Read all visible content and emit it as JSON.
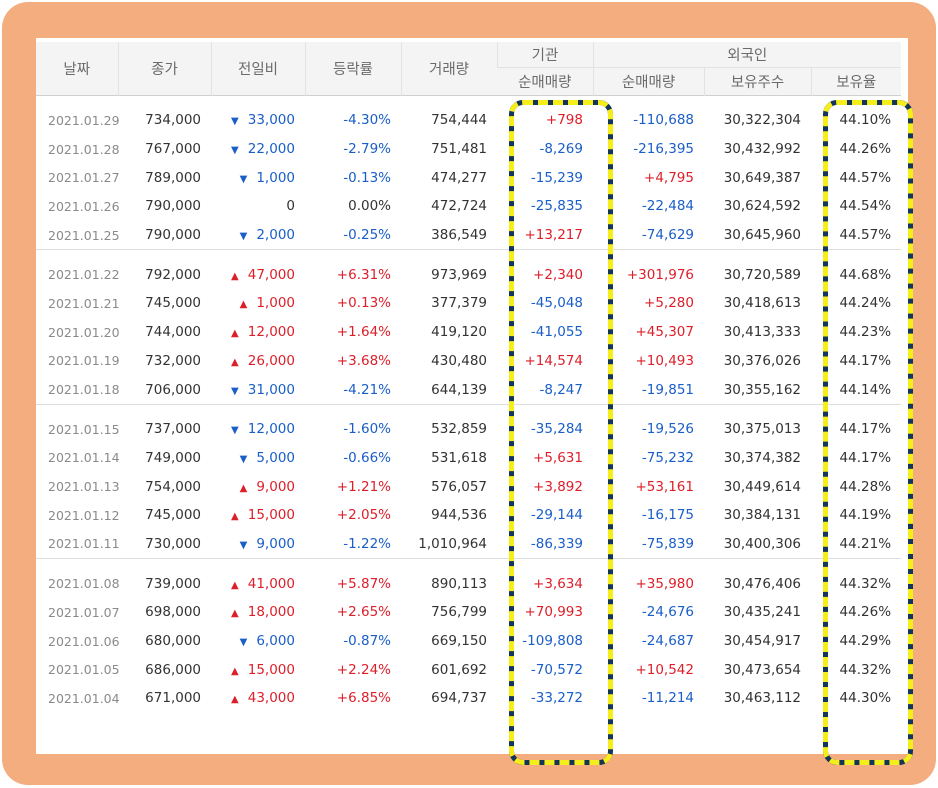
{
  "headers": {
    "date": "날짜",
    "close": "종가",
    "diff": "전일비",
    "rate": "등락률",
    "volume": "거래량",
    "institution": "기관",
    "foreign": "외국인",
    "inst_net": "순매매량",
    "foreign_net": "순매매량",
    "foreign_shares": "보유주수",
    "foreign_ratio": "보유율"
  },
  "colors": {
    "frame": "#f3ad7f",
    "up": "#dd1f2a",
    "down": "#1a5ec8",
    "highlight_dash": "#f5ee1a",
    "highlight_base": "#14355a"
  },
  "groups": [
    {
      "rows": [
        {
          "date": "2021.01.29",
          "close": "734,000",
          "dir": "down",
          "diff": "33,000",
          "rate": "-4.30%",
          "volume": "754,444",
          "inst": "+798",
          "fnet": "-110,688",
          "fshares": "30,322,304",
          "fratio": "44.10%"
        },
        {
          "date": "2021.01.28",
          "close": "767,000",
          "dir": "down",
          "diff": "22,000",
          "rate": "-2.79%",
          "volume": "751,481",
          "inst": "-8,269",
          "fnet": "-216,395",
          "fshares": "30,432,992",
          "fratio": "44.26%"
        },
        {
          "date": "2021.01.27",
          "close": "789,000",
          "dir": "down",
          "diff": "1,000",
          "rate": "-0.13%",
          "volume": "474,277",
          "inst": "-15,239",
          "fnet": "+4,795",
          "fshares": "30,649,387",
          "fratio": "44.57%"
        },
        {
          "date": "2021.01.26",
          "close": "790,000",
          "dir": "none",
          "diff": "0",
          "rate": "0.00%",
          "volume": "472,724",
          "inst": "-25,835",
          "fnet": "-22,484",
          "fshares": "30,624,592",
          "fratio": "44.54%"
        },
        {
          "date": "2021.01.25",
          "close": "790,000",
          "dir": "down",
          "diff": "2,000",
          "rate": "-0.25%",
          "volume": "386,549",
          "inst": "+13,217",
          "fnet": "-74,629",
          "fshares": "30,645,960",
          "fratio": "44.57%"
        }
      ]
    },
    {
      "rows": [
        {
          "date": "2021.01.22",
          "close": "792,000",
          "dir": "up",
          "diff": "47,000",
          "rate": "+6.31%",
          "volume": "973,969",
          "inst": "+2,340",
          "fnet": "+301,976",
          "fshares": "30,720,589",
          "fratio": "44.68%"
        },
        {
          "date": "2021.01.21",
          "close": "745,000",
          "dir": "up",
          "diff": "1,000",
          "rate": "+0.13%",
          "volume": "377,379",
          "inst": "-45,048",
          "fnet": "+5,280",
          "fshares": "30,418,613",
          "fratio": "44.24%"
        },
        {
          "date": "2021.01.20",
          "close": "744,000",
          "dir": "up",
          "diff": "12,000",
          "rate": "+1.64%",
          "volume": "419,120",
          "inst": "-41,055",
          "fnet": "+45,307",
          "fshares": "30,413,333",
          "fratio": "44.23%"
        },
        {
          "date": "2021.01.19",
          "close": "732,000",
          "dir": "up",
          "diff": "26,000",
          "rate": "+3.68%",
          "volume": "430,480",
          "inst": "+14,574",
          "fnet": "+10,493",
          "fshares": "30,376,026",
          "fratio": "44.17%"
        },
        {
          "date": "2021.01.18",
          "close": "706,000",
          "dir": "down",
          "diff": "31,000",
          "rate": "-4.21%",
          "volume": "644,139",
          "inst": "-8,247",
          "fnet": "-19,851",
          "fshares": "30,355,162",
          "fratio": "44.14%"
        }
      ]
    },
    {
      "rows": [
        {
          "date": "2021.01.15",
          "close": "737,000",
          "dir": "down",
          "diff": "12,000",
          "rate": "-1.60%",
          "volume": "532,859",
          "inst": "-35,284",
          "fnet": "-19,526",
          "fshares": "30,375,013",
          "fratio": "44.17%"
        },
        {
          "date": "2021.01.14",
          "close": "749,000",
          "dir": "down",
          "diff": "5,000",
          "rate": "-0.66%",
          "volume": "531,618",
          "inst": "+5,631",
          "fnet": "-75,232",
          "fshares": "30,374,382",
          "fratio": "44.17%"
        },
        {
          "date": "2021.01.13",
          "close": "754,000",
          "dir": "up",
          "diff": "9,000",
          "rate": "+1.21%",
          "volume": "576,057",
          "inst": "+3,892",
          "fnet": "+53,161",
          "fshares": "30,449,614",
          "fratio": "44.28%"
        },
        {
          "date": "2021.01.12",
          "close": "745,000",
          "dir": "up",
          "diff": "15,000",
          "rate": "+2.05%",
          "volume": "944,536",
          "inst": "-29,144",
          "fnet": "-16,175",
          "fshares": "30,384,131",
          "fratio": "44.19%"
        },
        {
          "date": "2021.01.11",
          "close": "730,000",
          "dir": "down",
          "diff": "9,000",
          "rate": "-1.22%",
          "volume": "1,010,964",
          "inst": "-86,339",
          "fnet": "-75,839",
          "fshares": "30,400,306",
          "fratio": "44.21%"
        }
      ]
    },
    {
      "rows": [
        {
          "date": "2021.01.08",
          "close": "739,000",
          "dir": "up",
          "diff": "41,000",
          "rate": "+5.87%",
          "volume": "890,113",
          "inst": "+3,634",
          "fnet": "+35,980",
          "fshares": "30,476,406",
          "fratio": "44.32%"
        },
        {
          "date": "2021.01.07",
          "close": "698,000",
          "dir": "up",
          "diff": "18,000",
          "rate": "+2.65%",
          "volume": "756,799",
          "inst": "+70,993",
          "fnet": "-24,676",
          "fshares": "30,435,241",
          "fratio": "44.26%"
        },
        {
          "date": "2021.01.06",
          "close": "680,000",
          "dir": "down",
          "diff": "6,000",
          "rate": "-0.87%",
          "volume": "669,150",
          "inst": "-109,808",
          "fnet": "-24,687",
          "fshares": "30,454,917",
          "fratio": "44.29%"
        },
        {
          "date": "2021.01.05",
          "close": "686,000",
          "dir": "up",
          "diff": "15,000",
          "rate": "+2.24%",
          "volume": "601,692",
          "inst": "-70,572",
          "fnet": "+10,542",
          "fshares": "30,473,654",
          "fratio": "44.32%"
        },
        {
          "date": "2021.01.04",
          "close": "671,000",
          "dir": "up",
          "diff": "43,000",
          "rate": "+6.85%",
          "volume": "694,737",
          "inst": "-33,272",
          "fnet": "-11,214",
          "fshares": "30,463,112",
          "fratio": "44.30%"
        }
      ]
    }
  ]
}
